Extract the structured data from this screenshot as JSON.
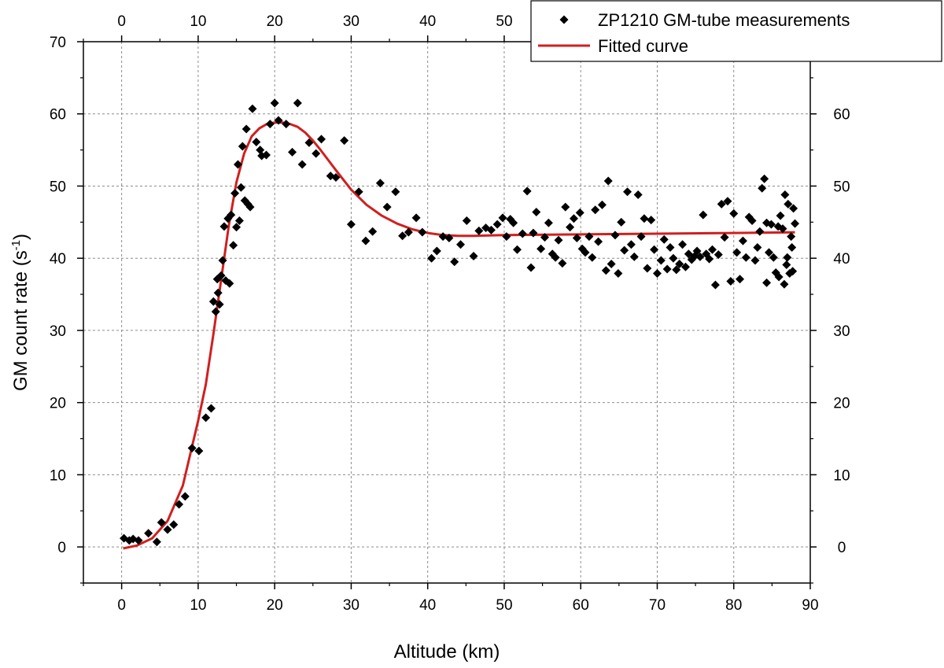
{
  "chart_data": {
    "type": "scatter",
    "xlabel": "Altitude (km)",
    "ylabel_main": "GM count rate (s",
    "ylabel_sup": "-1",
    "ylabel_close": ")",
    "xlim": [
      -5,
      90
    ],
    "ylim": [
      -5,
      70
    ],
    "x_ticks": [
      0,
      10,
      20,
      30,
      40,
      50,
      60,
      70,
      80,
      90
    ],
    "x_ticks_top": [
      0,
      10,
      20,
      30,
      40,
      50
    ],
    "y_ticks_left": [
      0,
      10,
      20,
      30,
      40,
      50,
      60,
      70
    ],
    "y_ticks_right": [
      0,
      10,
      20,
      30,
      40,
      50,
      60
    ],
    "grid": true,
    "legend": {
      "placement": "top-right",
      "entries": [
        {
          "label": "ZP1210 GM-tube measurements",
          "marker": "diamond",
          "color": "#000000"
        },
        {
          "label": "Fitted curve",
          "marker": "line",
          "color": "#d11f1f"
        }
      ]
    },
    "series": [
      {
        "name": "ZP1210 GM-tube measurements",
        "kind": "points",
        "color": "#000000",
        "points": [
          [
            0.3,
            1.2
          ],
          [
            1.0,
            0.9
          ],
          [
            1.5,
            1.1
          ],
          [
            2.2,
            0.9
          ],
          [
            3.5,
            1.9
          ],
          [
            4.6,
            0.7
          ],
          [
            5.2,
            3.4
          ],
          [
            6.0,
            2.4
          ],
          [
            6.8,
            3.1
          ],
          [
            7.5,
            5.9
          ],
          [
            8.3,
            7.0
          ],
          [
            9.2,
            13.7
          ],
          [
            10.1,
            13.3
          ],
          [
            11.0,
            17.9
          ],
          [
            11.7,
            19.2
          ],
          [
            12.0,
            34.0
          ],
          [
            12.3,
            32.6
          ],
          [
            12.5,
            37.1
          ],
          [
            12.6,
            35.2
          ],
          [
            12.8,
            33.6
          ],
          [
            13.0,
            37.6
          ],
          [
            13.2,
            39.7
          ],
          [
            13.4,
            44.4
          ],
          [
            13.6,
            36.9
          ],
          [
            13.9,
            45.5
          ],
          [
            14.1,
            36.5
          ],
          [
            14.3,
            46.0
          ],
          [
            14.6,
            41.8
          ],
          [
            14.8,
            49.0
          ],
          [
            15.0,
            44.3
          ],
          [
            15.2,
            53.0
          ],
          [
            15.4,
            45.2
          ],
          [
            15.6,
            49.8
          ],
          [
            15.8,
            55.5
          ],
          [
            16.1,
            48.0
          ],
          [
            16.3,
            57.9
          ],
          [
            16.5,
            47.5
          ],
          [
            16.8,
            47.1
          ],
          [
            17.1,
            60.7
          ],
          [
            17.6,
            56.1
          ],
          [
            18.1,
            55.0
          ],
          [
            18.3,
            54.2
          ],
          [
            18.9,
            54.3
          ],
          [
            19.4,
            58.6
          ],
          [
            20.0,
            61.5
          ],
          [
            20.5,
            59.1
          ],
          [
            21.5,
            58.6
          ],
          [
            22.3,
            54.7
          ],
          [
            23.0,
            61.5
          ],
          [
            23.6,
            53.0
          ],
          [
            24.5,
            56.0
          ],
          [
            25.4,
            54.5
          ],
          [
            26.1,
            56.5
          ],
          [
            27.3,
            51.4
          ],
          [
            28.0,
            51.2
          ],
          [
            29.1,
            56.3
          ],
          [
            30.0,
            44.7
          ],
          [
            31.0,
            49.2
          ],
          [
            31.9,
            42.4
          ],
          [
            32.8,
            43.7
          ],
          [
            33.8,
            50.4
          ],
          [
            34.7,
            47.1
          ],
          [
            35.8,
            49.2
          ],
          [
            36.7,
            43.1
          ],
          [
            37.5,
            43.6
          ],
          [
            38.5,
            45.6
          ],
          [
            39.3,
            43.6
          ],
          [
            40.5,
            40.0
          ],
          [
            41.2,
            41.0
          ],
          [
            42.0,
            43.0
          ],
          [
            42.8,
            42.8
          ],
          [
            43.5,
            39.5
          ],
          [
            44.3,
            41.9
          ],
          [
            45.1,
            45.2
          ],
          [
            46.0,
            40.3
          ],
          [
            46.7,
            43.8
          ],
          [
            47.6,
            44.2
          ],
          [
            48.3,
            43.9
          ],
          [
            49.1,
            44.7
          ],
          [
            49.8,
            45.6
          ],
          [
            50.3,
            43.0
          ],
          [
            50.8,
            45.4
          ],
          [
            51.2,
            44.9
          ],
          [
            51.7,
            41.2
          ],
          [
            52.4,
            43.4
          ],
          [
            53.0,
            49.3
          ],
          [
            53.5,
            38.7
          ],
          [
            53.8,
            43.5
          ],
          [
            54.2,
            46.4
          ],
          [
            54.8,
            41.3
          ],
          [
            55.3,
            42.9
          ],
          [
            55.8,
            44.9
          ],
          [
            56.3,
            40.6
          ],
          [
            56.7,
            40.1
          ],
          [
            57.1,
            42.5
          ],
          [
            57.6,
            39.3
          ],
          [
            58.0,
            47.1
          ],
          [
            58.6,
            44.3
          ],
          [
            59.1,
            45.5
          ],
          [
            59.5,
            42.8
          ],
          [
            59.9,
            46.3
          ],
          [
            60.2,
            41.3
          ],
          [
            60.6,
            40.8
          ],
          [
            61.1,
            43.0
          ],
          [
            61.5,
            40.1
          ],
          [
            61.9,
            46.7
          ],
          [
            62.3,
            42.3
          ],
          [
            62.8,
            47.4
          ],
          [
            63.3,
            38.3
          ],
          [
            63.6,
            50.7
          ],
          [
            64.0,
            39.2
          ],
          [
            64.5,
            43.2
          ],
          [
            64.9,
            37.9
          ],
          [
            65.3,
            45.0
          ],
          [
            65.7,
            41.1
          ],
          [
            66.1,
            49.2
          ],
          [
            66.6,
            41.9
          ],
          [
            67.0,
            40.2
          ],
          [
            67.5,
            48.8
          ],
          [
            67.9,
            43.0
          ],
          [
            68.3,
            45.5
          ],
          [
            68.7,
            38.6
          ],
          [
            69.2,
            45.3
          ],
          [
            69.6,
            41.2
          ],
          [
            70.0,
            37.9
          ],
          [
            70.5,
            39.7
          ],
          [
            70.9,
            42.6
          ],
          [
            71.3,
            38.5
          ],
          [
            71.7,
            41.5
          ],
          [
            72.1,
            40.0
          ],
          [
            72.5,
            38.4
          ],
          [
            72.9,
            39.2
          ],
          [
            73.3,
            41.9
          ],
          [
            73.7,
            38.8
          ],
          [
            74.1,
            40.6
          ],
          [
            74.5,
            39.8
          ],
          [
            74.9,
            40.3
          ],
          [
            75.2,
            41.0
          ],
          [
            75.6,
            40.2
          ],
          [
            76.0,
            46.0
          ],
          [
            76.4,
            40.6
          ],
          [
            76.8,
            39.9
          ],
          [
            77.2,
            41.2
          ],
          [
            77.6,
            36.3
          ],
          [
            78.0,
            40.5
          ],
          [
            78.4,
            47.5
          ],
          [
            78.8,
            42.9
          ],
          [
            79.2,
            47.9
          ],
          [
            79.6,
            36.8
          ],
          [
            80.0,
            46.2
          ],
          [
            80.4,
            40.8
          ],
          [
            80.8,
            37.1
          ],
          [
            81.2,
            42.4
          ],
          [
            81.6,
            40.1
          ],
          [
            82.0,
            45.7
          ],
          [
            82.4,
            45.2
          ],
          [
            82.8,
            39.7
          ],
          [
            83.1,
            41.5
          ],
          [
            83.4,
            43.7
          ],
          [
            83.7,
            49.7
          ],
          [
            84.0,
            51.0
          ],
          [
            84.3,
            44.9
          ],
          [
            84.6,
            40.8
          ],
          [
            84.9,
            44.7
          ],
          [
            85.2,
            40.1
          ],
          [
            85.5,
            38.0
          ],
          [
            85.8,
            44.4
          ],
          [
            86.1,
            45.9
          ],
          [
            86.4,
            44.1
          ],
          [
            86.7,
            48.8
          ],
          [
            86.9,
            39.1
          ],
          [
            87.1,
            47.5
          ],
          [
            87.3,
            37.9
          ],
          [
            87.5,
            43.0
          ],
          [
            87.6,
            41.5
          ],
          [
            87.7,
            38.2
          ],
          [
            87.8,
            46.9
          ],
          [
            88.0,
            44.8
          ],
          [
            84.3,
            36.6
          ],
          [
            86.6,
            36.4
          ],
          [
            87.0,
            40.1
          ],
          [
            85.9,
            37.4
          ]
        ]
      },
      {
        "name": "Fitted curve",
        "kind": "line",
        "color": "#d11f1f",
        "points": [
          [
            0.2,
            -0.2
          ],
          [
            2,
            0.2
          ],
          [
            4,
            1.2
          ],
          [
            6,
            3.6
          ],
          [
            8,
            8.5
          ],
          [
            10,
            17.5
          ],
          [
            11,
            22.5
          ],
          [
            12,
            29.5
          ],
          [
            13,
            37.0
          ],
          [
            14,
            44.5
          ],
          [
            15,
            50.5
          ],
          [
            16,
            54.5
          ],
          [
            17,
            56.9
          ],
          [
            18,
            58.0
          ],
          [
            19,
            58.6
          ],
          [
            20,
            58.8
          ],
          [
            21,
            58.8
          ],
          [
            22,
            58.6
          ],
          [
            23,
            58.2
          ],
          [
            24,
            57.4
          ],
          [
            25,
            56.3
          ],
          [
            26,
            55.0
          ],
          [
            27,
            53.6
          ],
          [
            28,
            52.2
          ],
          [
            30,
            49.5
          ],
          [
            32,
            47.4
          ],
          [
            34,
            45.9
          ],
          [
            36,
            44.8
          ],
          [
            38,
            44.0
          ],
          [
            40,
            43.5
          ],
          [
            42,
            43.2
          ],
          [
            44,
            43.1
          ],
          [
            46,
            43.1
          ],
          [
            50,
            43.2
          ],
          [
            60,
            43.3
          ],
          [
            70,
            43.4
          ],
          [
            80,
            43.5
          ],
          [
            88,
            43.6
          ]
        ]
      }
    ]
  }
}
